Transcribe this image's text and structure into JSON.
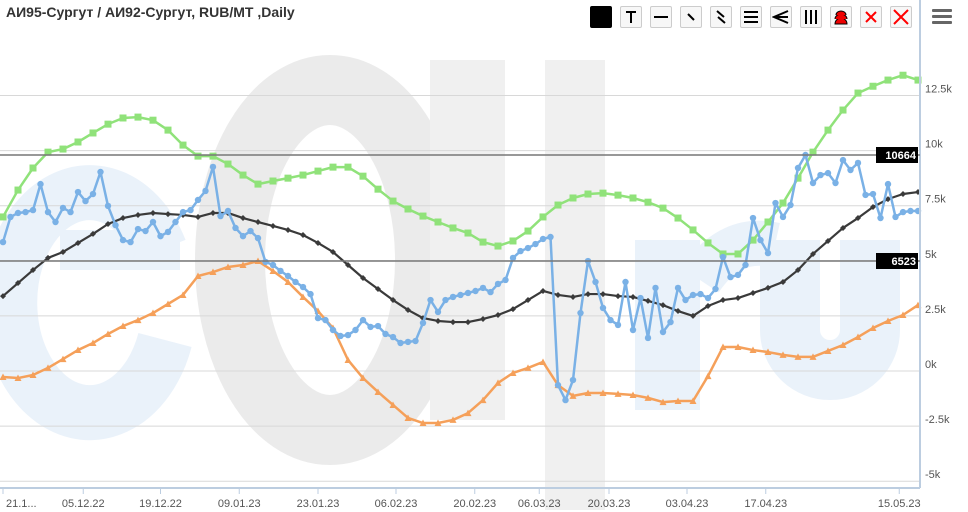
{
  "title": "АИ95-Сургут / АИ92-Сургут, RUB/MT ,Daily",
  "toolbar": [
    {
      "name": "color-swatch-button",
      "icon": "black-square-icon"
    },
    {
      "name": "text-tool-button",
      "icon": "text-t-icon"
    },
    {
      "name": "horizontal-line-button",
      "icon": "horizontal-line-icon"
    },
    {
      "name": "trend-line-button",
      "icon": "diagonal-line-icon"
    },
    {
      "name": "parallel-channel-button",
      "icon": "double-diagonal-icon"
    },
    {
      "name": "fibonacci-levels-button",
      "icon": "three-lines-icon"
    },
    {
      "name": "fan-lines-button",
      "icon": "angle-icon"
    },
    {
      "name": "vertical-lines-button",
      "icon": "vertical-lines-icon"
    },
    {
      "name": "arcs-button",
      "icon": "red-arcs-icon"
    },
    {
      "name": "delete-selected-button",
      "icon": "small-red-x-icon"
    },
    {
      "name": "delete-all-button",
      "icon": "red-x-icon"
    }
  ],
  "menu_icon": "hamburger-menu-icon",
  "colors": {
    "green": "#90e27a",
    "black": "#3a3a3a",
    "orange": "#f5a05a",
    "blue": "#7ab1e6",
    "grid": "#d8d8d8",
    "axis": "#bccde0"
  },
  "chart_data": {
    "type": "line",
    "title": "АИ95-Сургут / АИ92-Сургут, RUB/MT ,Daily",
    "x_tick_labels": [
      {
        "label": "21.1...",
        "index": 0
      },
      {
        "label": "05.12.22",
        "index": 10.7
      },
      {
        "label": "19.12.22",
        "index": 21
      },
      {
        "label": "09.01.23",
        "index": 31.5
      },
      {
        "label": "23.01.23",
        "index": 42
      },
      {
        "label": "06.02.23",
        "index": 52.4
      },
      {
        "label": "20.02.23",
        "index": 62.9
      },
      {
        "label": "06.03.23",
        "index": 71.5
      },
      {
        "label": "20.03.23",
        "index": 80.8
      },
      {
        "label": "03.04.23",
        "index": 91.2
      },
      {
        "label": "17.04.23",
        "index": 101.7
      },
      {
        "label": "15.05.23",
        "index": 119.5
      }
    ],
    "x_range": [
      0,
      122.5
    ],
    "ylim": [
      -5000,
      15000
    ],
    "y_ticks": [
      {
        "label": "-5k",
        "value": -5000
      },
      {
        "label": "-2.5k",
        "value": -2500
      },
      {
        "label": "0k",
        "value": 0
      },
      {
        "label": "2.5k",
        "value": 2500
      },
      {
        "label": "5k",
        "value": 5000
      },
      {
        "label": "7.5k",
        "value": 7500
      },
      {
        "label": "10k",
        "value": 10000
      },
      {
        "label": "12.5k",
        "value": 12500
      }
    ],
    "grid": true,
    "horizontal_lines": [
      {
        "label": "10664",
        "value": 10664
      },
      {
        "label": "6523",
        "value": 6523
      }
    ],
    "series": [
      {
        "name": "green",
        "color": "#90e27a",
        "marker": "square",
        "x_step": 2,
        "values": [
          6990,
          8210,
          9210,
          9930,
          10070,
          10390,
          10800,
          11200,
          11480,
          11520,
          11380,
          10930,
          10250,
          9750,
          9750,
          9390,
          8890,
          8480,
          8620,
          8750,
          8890,
          9070,
          9250,
          9250,
          8840,
          8250,
          7710,
          7350,
          7030,
          6760,
          6490,
          6260,
          5850,
          5670,
          5900,
          6350,
          6990,
          7530,
          7850,
          8030,
          8070,
          7980,
          7850,
          7660,
          7390,
          6940,
          6400,
          5810,
          5310,
          5310,
          5940,
          6760,
          7620,
          8750,
          9930,
          10930,
          11840,
          12610,
          12920,
          13200,
          13420,
          13200
        ]
      },
      {
        "name": "black",
        "color": "#3a3a3a",
        "marker": "diamond",
        "x_step": 2,
        "values": [
          3400,
          3990,
          4580,
          5130,
          5400,
          5810,
          6220,
          6670,
          6940,
          7080,
          7170,
          7120,
          7080,
          6990,
          7170,
          7170,
          6940,
          6760,
          6580,
          6400,
          6170,
          5810,
          5400,
          4810,
          4220,
          3720,
          3220,
          2770,
          2400,
          2270,
          2220,
          2220,
          2360,
          2540,
          2810,
          3220,
          3630,
          3450,
          3360,
          3490,
          3490,
          3400,
          3360,
          3180,
          2990,
          2720,
          2500,
          2950,
          3220,
          3310,
          3540,
          3770,
          4040,
          4580,
          5310,
          5900,
          6490,
          6940,
          7440,
          7800,
          8030,
          8120
        ]
      },
      {
        "name": "orange",
        "color": "#f5a05a",
        "marker": "triangle",
        "x_step": 2,
        "values": [
          -270,
          -320,
          -180,
          140,
          540,
          950,
          1270,
          1680,
          2040,
          2310,
          2630,
          3040,
          3450,
          4310,
          4490,
          4720,
          4810,
          4990,
          4540,
          4040,
          3360,
          2720,
          1950,
          500,
          -320,
          -950,
          -1540,
          -2130,
          -2360,
          -2360,
          -2220,
          -1910,
          -1320,
          -540,
          -90,
          140,
          410,
          -640,
          -1130,
          -1000,
          -1000,
          -1040,
          -1090,
          -1220,
          -1410,
          -1360,
          -1360,
          -230,
          1090,
          1090,
          950,
          860,
          730,
          640,
          640,
          910,
          1180,
          1540,
          1950,
          2270,
          2540,
          2990
        ]
      },
      {
        "name": "blue",
        "color": "#7ab1e6",
        "marker": "circle",
        "x_step": 1,
        "values": [
          5850,
          6990,
          7170,
          7210,
          7300,
          8480,
          7210,
          6760,
          7400,
          7210,
          8120,
          7710,
          8030,
          9030,
          7490,
          6620,
          5940,
          5850,
          6440,
          6350,
          6760,
          6120,
          6310,
          6760,
          7210,
          7300,
          7760,
          8170,
          9260,
          7030,
          7260,
          6490,
          6120,
          6350,
          6030,
          4950,
          4810,
          4540,
          4310,
          4040,
          3810,
          3490,
          2400,
          2310,
          1860,
          1590,
          1630,
          1860,
          2310,
          2000,
          2040,
          1680,
          1540,
          1270,
          1320,
          1360,
          2180,
          3220,
          2680,
          3220,
          3360,
          3450,
          3540,
          3630,
          3770,
          3580,
          3950,
          4130,
          5130,
          5440,
          5580,
          5760,
          5990,
          6080,
          -640,
          -1320,
          -410,
          2630,
          4990,
          4040,
          2860,
          2310,
          2090,
          4040,
          1860,
          3310,
          1500,
          3770,
          1770,
          2220,
          3770,
          3220,
          3450,
          3490,
          3310,
          3720,
          5170,
          4260,
          4360,
          4810,
          6940,
          5940,
          5350,
          7620,
          6990,
          7530,
          9210,
          9800,
          8530,
          8890,
          8980,
          8530,
          9570,
          9120,
          9440,
          7990,
          8030,
          6940,
          8480,
          6990,
          7210,
          7260,
          7260
        ]
      }
    ]
  },
  "watermark": "eOil.ru"
}
